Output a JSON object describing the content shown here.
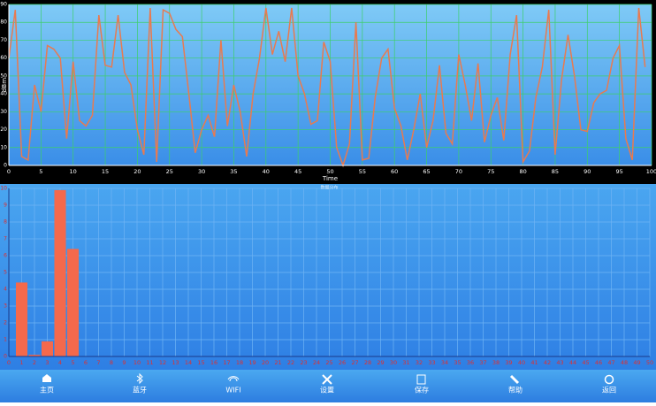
{
  "chart_data": [
    {
      "type": "line",
      "x_label": "Time",
      "y_label": "dBm",
      "x": [
        0,
        1,
        2,
        3,
        4,
        5,
        6,
        7,
        8,
        9,
        10,
        11,
        12,
        13,
        14,
        15,
        16,
        17,
        18,
        19,
        20,
        21,
        22,
        23,
        24,
        25,
        26,
        27,
        28,
        29,
        30,
        31,
        32,
        33,
        34,
        35,
        36,
        37,
        38,
        39,
        40,
        41,
        42,
        43,
        44,
        45,
        46,
        47,
        48,
        49,
        50,
        51,
        52,
        53,
        54,
        55,
        56,
        57,
        58,
        59,
        60,
        61,
        62,
        63,
        64,
        65,
        66,
        67,
        68,
        69,
        70,
        71,
        72,
        73,
        74,
        75,
        76,
        77,
        78,
        79,
        80,
        81,
        82,
        83,
        84,
        85,
        86,
        87,
        88,
        89,
        90,
        91,
        92,
        93,
        94,
        95,
        96,
        97,
        98,
        99
      ],
      "values": [
        60,
        87,
        5,
        3,
        45,
        30,
        67,
        65,
        60,
        15,
        58,
        25,
        22,
        28,
        84,
        56,
        55,
        84,
        52,
        45,
        20,
        6,
        88,
        2,
        87,
        85,
        76,
        72,
        40,
        7,
        20,
        28,
        16,
        70,
        22,
        45,
        30,
        5,
        40,
        60,
        88,
        62,
        75,
        58,
        88,
        50,
        40,
        23,
        25,
        69,
        58,
        10,
        0,
        12,
        80,
        3,
        4,
        38,
        60,
        65,
        32,
        22,
        3,
        20,
        40,
        10,
        25,
        56,
        18,
        12,
        62,
        45,
        25,
        57,
        13,
        28,
        38,
        14,
        62,
        84,
        2,
        8,
        38,
        55,
        87,
        6,
        48,
        73,
        50,
        20,
        19,
        35,
        40,
        42,
        60,
        67,
        15,
        3,
        88,
        55
      ],
      "color": "#e87a50",
      "grid_color": "#3ccf6a",
      "xlim": [
        0,
        100
      ],
      "ylim": [
        0,
        90
      ],
      "xticks": [
        0,
        5,
        10,
        15,
        20,
        25,
        30,
        35,
        40,
        45,
        50,
        55,
        60,
        65,
        70,
        75,
        80,
        85,
        90,
        95,
        100
      ],
      "yticks": [
        0,
        10,
        20,
        30,
        40,
        50,
        60,
        70,
        80,
        90
      ],
      "grid": true
    },
    {
      "type": "bar",
      "title": "数据分布",
      "x": [
        0,
        1,
        2,
        3,
        4,
        5,
        6,
        7,
        8,
        9,
        10,
        11,
        12,
        13,
        14,
        15,
        16,
        17,
        18,
        19,
        20,
        21,
        22,
        23,
        24,
        25,
        26,
        27,
        28,
        29,
        30,
        31,
        32,
        33,
        34,
        35,
        36,
        37,
        38,
        39,
        40,
        41,
        42,
        43,
        44,
        45,
        46,
        47,
        48,
        49,
        50
      ],
      "values": [
        0,
        4.4,
        0.1,
        0.9,
        9.9,
        6.4,
        0,
        0,
        0,
        0,
        0,
        0,
        0,
        0,
        0,
        0,
        0,
        0,
        0,
        0,
        0,
        0,
        0,
        0,
        0,
        0,
        0,
        0,
        0,
        0,
        0,
        0,
        0,
        0,
        0,
        0,
        0,
        0,
        0,
        0,
        0,
        0,
        0,
        0,
        0,
        0,
        0,
        0,
        0,
        0,
        0
      ],
      "color": "#f4694c",
      "grid_color": "#6fb4f4",
      "xlim": [
        0,
        50
      ],
      "ylim": [
        0,
        10
      ],
      "xticks": [
        0,
        1,
        2,
        3,
        4,
        5,
        6,
        7,
        8,
        9,
        10,
        11,
        12,
        13,
        14,
        15,
        16,
        17,
        18,
        19,
        20,
        21,
        22,
        23,
        24,
        25,
        26,
        27,
        28,
        29,
        30,
        31,
        32,
        33,
        34,
        35,
        36,
        37,
        38,
        39,
        40,
        41,
        42,
        43,
        44,
        45,
        46,
        47,
        48,
        49,
        50
      ],
      "yticks": [
        0,
        1,
        2,
        3,
        4,
        5,
        6,
        7,
        8,
        9,
        10
      ],
      "grid": true
    }
  ],
  "nav": {
    "items": [
      "主页",
      "蓝牙",
      "WIFI",
      "设置",
      "保存",
      "帮助",
      "返回"
    ]
  }
}
